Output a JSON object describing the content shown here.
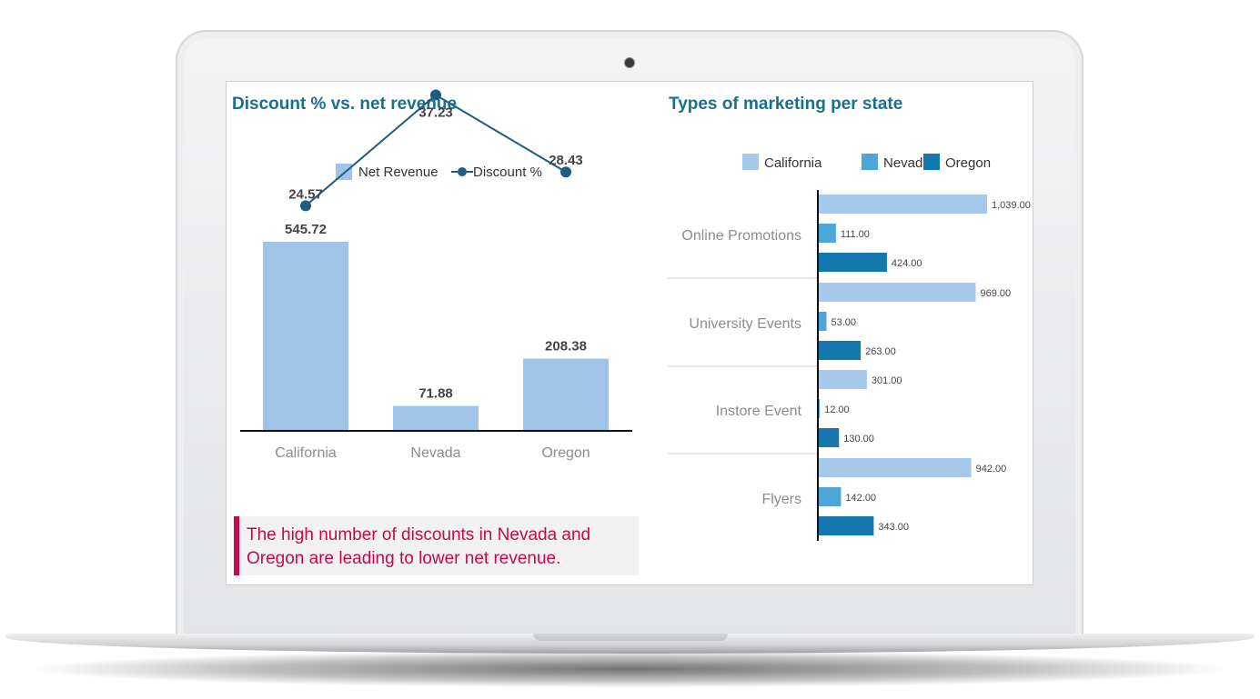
{
  "colors": {
    "title": "#1a6e8e",
    "bar_light": "#a0c4e8",
    "line": "#1c5d86",
    "california": "#a6c8ea",
    "nevada": "#4ea6d8",
    "oregon": "#1478ae",
    "callout_accent": "#c4094f"
  },
  "left_panel": {
    "title": "Discount % vs. net revenue",
    "callout": "The high number of discounts in Nevada and Oregon are leading to lower net revenue."
  },
  "right_panel": {
    "title": "Types of marketing per state"
  },
  "chart_data": [
    {
      "type": "bar",
      "title": "Discount % vs. net revenue",
      "categories": [
        "California",
        "Nevada",
        "Oregon"
      ],
      "series": [
        {
          "name": "Net Revenue",
          "type": "bar",
          "values": [
            545.72,
            71.88,
            208.38
          ],
          "labels": [
            "545.72",
            "71.88",
            "208.38"
          ]
        },
        {
          "name": "Discount %",
          "type": "line",
          "values": [
            24.57,
            37.23,
            28.43
          ],
          "labels": [
            "24.57",
            "37.23",
            "28.43"
          ]
        }
      ],
      "legend": "top-center",
      "grid": false
    },
    {
      "type": "bar",
      "orientation": "horizontal",
      "title": "Types of marketing per state",
      "categories": [
        "Online Promotions",
        "University Events",
        "Instore Event",
        "Flyers"
      ],
      "series": [
        {
          "name": "California",
          "values": [
            1039,
            969,
            301,
            942
          ],
          "labels": [
            "1,039.00",
            "969.00",
            "301.00",
            "942.00"
          ]
        },
        {
          "name": "Nevada",
          "values": [
            111,
            53,
            12,
            142
          ],
          "labels": [
            "111.00",
            "53.00",
            "12.00",
            "142.00"
          ]
        },
        {
          "name": "Oregon",
          "values": [
            424,
            263,
            130,
            343
          ],
          "labels": [
            "424.00",
            "263.00",
            "130.00",
            "343.00"
          ]
        }
      ],
      "legend": "top-center",
      "grid": false
    }
  ]
}
